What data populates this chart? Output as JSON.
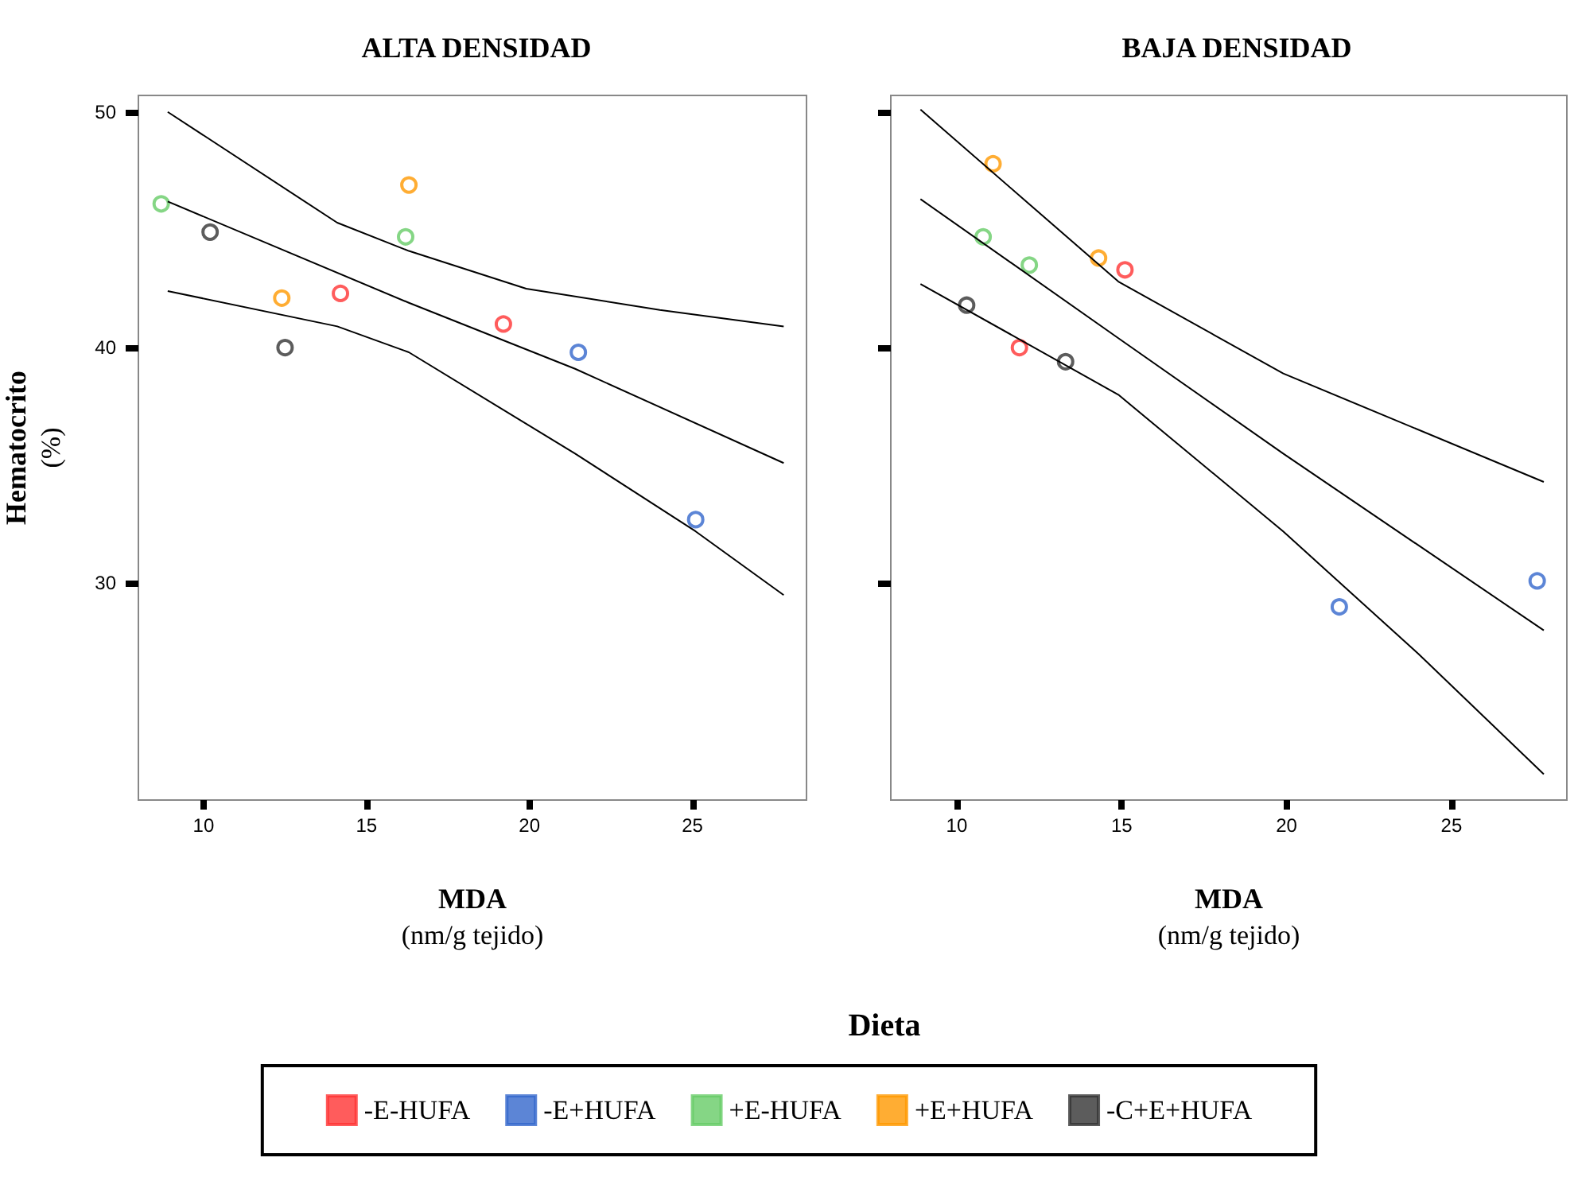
{
  "chart_data": [
    {
      "type": "scatter",
      "title": "ALTA DENSIDAD",
      "xlabel": "MDA\n(nm/g tejido)",
      "ylabel": "Hematocrito\n(%)",
      "legend_title": "Dieta",
      "legend": "bottom",
      "marker": "circle",
      "grid": false,
      "xlim": [
        8,
        28.5
      ],
      "xticks": [
        10,
        15,
        20,
        25
      ],
      "ylim": [
        20.8,
        50.7
      ],
      "yticks": [
        30,
        40,
        50
      ],
      "series": [
        {
          "name": "-E-HUFA",
          "color": "#ff3333",
          "x": [
            14.2,
            19.2
          ],
          "values": [
            42.3,
            41.0
          ]
        },
        {
          "name": "-E+HUFA",
          "color": "#3366cc",
          "x": [
            21.5,
            25.1
          ],
          "values": [
            39.8,
            32.7
          ]
        },
        {
          "name": "+E-HUFA",
          "color": "#66cc66",
          "x": [
            8.7,
            16.2
          ],
          "values": [
            46.1,
            44.7
          ]
        },
        {
          "name": "+E+HUFA",
          "color": "#ff9900",
          "x": [
            12.4,
            16.3
          ],
          "values": [
            42.1,
            46.9
          ]
        },
        {
          "name": "-C+E+HUFA",
          "color": "#333333",
          "x": [
            10.2,
            12.5
          ],
          "values": [
            44.9,
            40.0
          ]
        },
        {
          "type": "line",
          "marker": "none",
          "color": "#000000",
          "x": [
            8.9,
            14.1,
            16.3,
            19.9,
            24.0,
            27.8
          ],
          "values": [
            50.0,
            45.3,
            44.1,
            42.5,
            41.6,
            40.9
          ]
        },
        {
          "type": "line",
          "marker": "none",
          "color": "#000000",
          "x": [
            8.9,
            16.3,
            21.4,
            27.8
          ],
          "values": [
            46.2,
            41.9,
            39.1,
            35.1
          ]
        },
        {
          "type": "line",
          "marker": "none",
          "color": "#000000",
          "x": [
            8.9,
            14.1,
            16.3,
            21.4,
            25.1,
            27.8
          ],
          "values": [
            42.4,
            40.9,
            39.8,
            35.5,
            32.2,
            29.5
          ]
        }
      ]
    },
    {
      "type": "scatter",
      "title": "BAJA DENSIDAD",
      "xlabel": "MDA\n(nm/g tejido)",
      "legend": "bottom",
      "marker": "circle",
      "grid": false,
      "tick_labels": "x",
      "xlim": [
        8,
        28.5
      ],
      "xticks": [
        10,
        15,
        20,
        25
      ],
      "ylim": [
        20.8,
        50.7
      ],
      "yticks": [
        30,
        40,
        50
      ],
      "series": [
        {
          "name": "-E-HUFA",
          "color": "#ff3333",
          "x": [
            11.9,
            15.1
          ],
          "values": [
            40.0,
            43.3
          ]
        },
        {
          "name": "-E+HUFA",
          "color": "#3366cc",
          "x": [
            21.6,
            27.6
          ],
          "values": [
            29.0,
            30.1
          ]
        },
        {
          "name": "+E-HUFA",
          "color": "#66cc66",
          "x": [
            10.8,
            12.2
          ],
          "values": [
            44.7,
            43.5
          ]
        },
        {
          "name": "+E+HUFA",
          "color": "#ff9900",
          "x": [
            11.1,
            14.3
          ],
          "values": [
            47.8,
            43.8
          ]
        },
        {
          "name": "-C+E+HUFA",
          "color": "#333333",
          "x": [
            10.3,
            13.3
          ],
          "values": [
            41.8,
            39.4
          ]
        },
        {
          "type": "line",
          "marker": "none",
          "color": "#000000",
          "x": [
            8.9,
            14.9,
            19.9,
            27.8
          ],
          "values": [
            50.1,
            42.8,
            38.9,
            34.3
          ]
        },
        {
          "type": "line",
          "marker": "none",
          "color": "#000000",
          "x": [
            8.9,
            14.9,
            19.9,
            27.8
          ],
          "values": [
            46.3,
            40.4,
            35.5,
            28.0
          ]
        },
        {
          "type": "line",
          "marker": "none",
          "color": "#000000",
          "x": [
            8.9,
            14.9,
            19.9,
            24.0,
            27.8
          ],
          "values": [
            42.7,
            38.0,
            32.2,
            27.0,
            21.9
          ]
        }
      ]
    }
  ]
}
